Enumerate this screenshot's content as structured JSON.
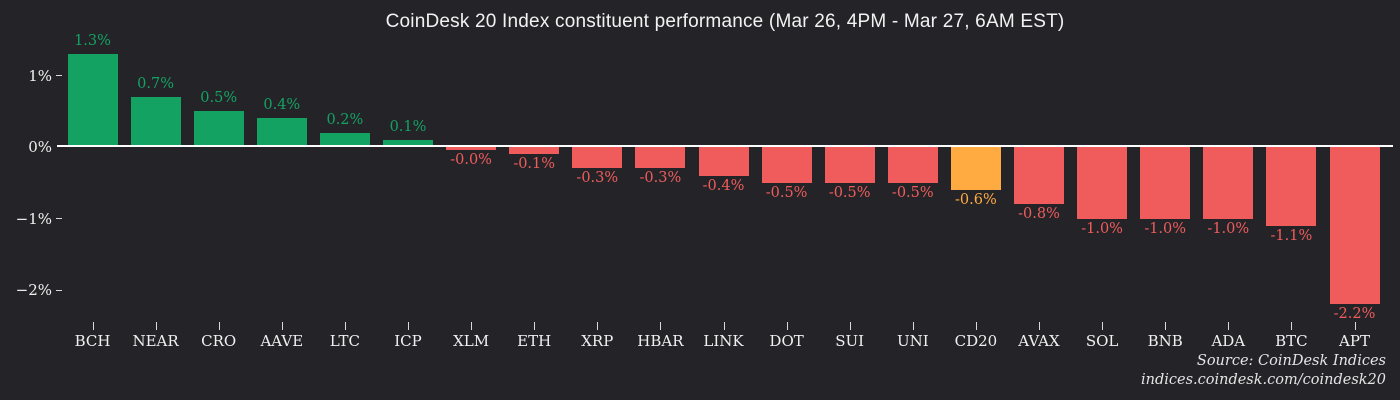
{
  "title": "CoinDesk 20 Index constituent performance (Mar 26, 4PM - Mar 27, 6AM EST)",
  "source": {
    "line1": "Source: CoinDesk Indices",
    "line2": "indices.coindesk.com/coindesk20"
  },
  "colors": {
    "background": "#242428",
    "positive": "#14a263",
    "negative": "#f05c5c",
    "highlight": "#ffab42",
    "zero_line": "#ffffff",
    "title_text": "#f2f2f3",
    "axis_text": "#f0f0f1",
    "tick": "#d9d9d9",
    "source_text": "#e4e4e6"
  },
  "chart_data": {
    "type": "bar",
    "title": "CoinDesk 20 Index constituent performance (Mar 26, 4PM - Mar 27, 6AM EST)",
    "categories": [
      "BCH",
      "NEAR",
      "CRO",
      "AAVE",
      "LTC",
      "ICP",
      "XLM",
      "ETH",
      "XRP",
      "HBAR",
      "LINK",
      "DOT",
      "SUI",
      "UNI",
      "CD20",
      "AVAX",
      "SOL",
      "BNB",
      "ADA",
      "BTC",
      "APT"
    ],
    "values": [
      1.3,
      0.7,
      0.5,
      0.4,
      0.2,
      0.1,
      -0.0,
      -0.1,
      -0.3,
      -0.3,
      -0.4,
      -0.5,
      -0.5,
      -0.5,
      -0.6,
      -0.8,
      -1.0,
      -1.0,
      -1.0,
      -1.1,
      -2.2
    ],
    "value_labels": [
      "1.3%",
      "0.7%",
      "0.5%",
      "0.4%",
      "0.2%",
      "0.1%",
      "-0.0%",
      "-0.1%",
      "-0.3%",
      "-0.3%",
      "-0.4%",
      "-0.5%",
      "-0.5%",
      "-0.5%",
      "-0.6%",
      "-0.8%",
      "-1.0%",
      "-1.0%",
      "-1.0%",
      "-1.1%",
      "-2.2%"
    ],
    "bar_colors": [
      "positive",
      "positive",
      "positive",
      "positive",
      "positive",
      "positive",
      "negative",
      "negative",
      "negative",
      "negative",
      "negative",
      "negative",
      "negative",
      "negative",
      "highlight",
      "negative",
      "negative",
      "negative",
      "negative",
      "negative",
      "negative"
    ],
    "y_ticks": [
      {
        "value": 1,
        "label": "1%"
      },
      {
        "value": 0,
        "label": "0%"
      },
      {
        "value": -1,
        "label": "−1%"
      },
      {
        "value": -2,
        "label": "−2%"
      }
    ],
    "xlabel": "",
    "ylabel": "",
    "ylim": [
      -2.55,
      1.5
    ],
    "grid": false,
    "legend": null
  }
}
